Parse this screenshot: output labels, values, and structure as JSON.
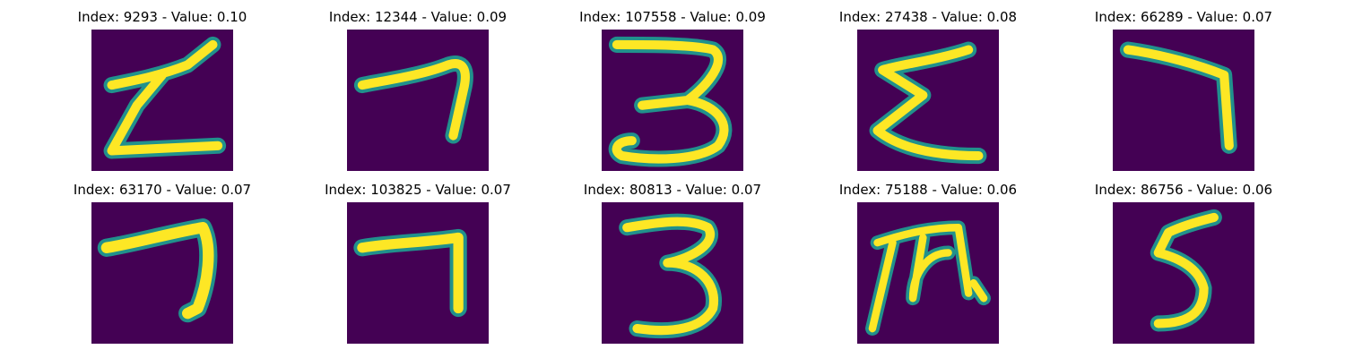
{
  "figure": {
    "panels": [
      {
        "title": "Index: 9293 - Value: 0.10",
        "glyph": "Z-with-stroke"
      },
      {
        "title": "Index: 12344 - Value: 0.09",
        "glyph": "seven"
      },
      {
        "title": "Index: 107558 - Value: 0.09",
        "glyph": "three"
      },
      {
        "title": "Index: 27438 - Value: 0.08",
        "glyph": "sigma"
      },
      {
        "title": "Index: 66289 - Value: 0.07",
        "glyph": "seven"
      },
      {
        "title": "Index: 63170 - Value: 0.07",
        "glyph": "seven"
      },
      {
        "title": "Index: 103825 - Value: 0.07",
        "glyph": "seven"
      },
      {
        "title": "Index: 80813 - Value: 0.07",
        "glyph": "three"
      },
      {
        "title": "Index: 75188 - Value: 0.06",
        "glyph": "pi-like"
      },
      {
        "title": "Index: 86756 - Value: 0.06",
        "glyph": "five"
      }
    ],
    "colors": {
      "background": "#440154",
      "edge": "#21918c",
      "stroke": "#fde725"
    }
  }
}
